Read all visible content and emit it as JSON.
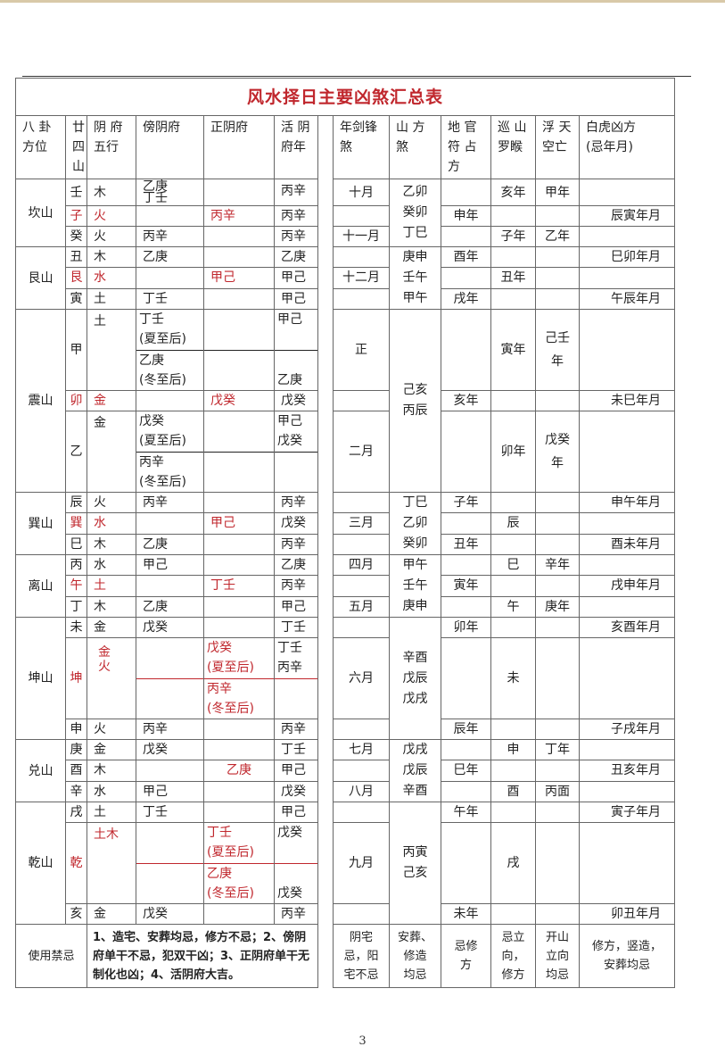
{
  "title": "风水择日主要凶煞汇总表",
  "colors": {
    "accent_red": "#c0272d",
    "border": "#666666"
  },
  "headers": [
    "八 卦\n方位",
    "廿\n四\n山",
    "阴 府\n五行",
    "傍阴府",
    "正阴府",
    "活 阴\n府年",
    "年剑锋\n煞",
    "山 方\n煞",
    "地 官\n符 占\n方",
    "巡 山\n罗睺",
    "浮 天\n空亡",
    "白虎凶方\n(忌年月)"
  ],
  "groups": [
    {
      "name": "坎山",
      "shanfang": "乙卯\n癸卯\n丁巳",
      "rows": [
        {
          "shan": "壬",
          "wx": "木",
          "bang": "乙庚\n丁壬",
          "zheng": "",
          "huo": "丙辛",
          "jian": "十月",
          "difu": "",
          "luohou": "亥年",
          "kongwang": "甲年",
          "baihu": "",
          "red": []
        },
        {
          "shan": "子",
          "wx": "火",
          "bang": "",
          "zheng": "丙辛",
          "huo": "丙辛",
          "jian": "",
          "difu": "申年",
          "luohou": "",
          "kongwang": "",
          "baihu": "辰寅年月",
          "red": [
            "shan",
            "wx",
            "zheng"
          ]
        },
        {
          "shan": "癸",
          "wx": "火",
          "bang": "丙辛",
          "zheng": "",
          "huo": "丙辛",
          "jian": "十一月",
          "difu": "",
          "luohou": "子年",
          "kongwang": "乙年",
          "baihu": "",
          "red": []
        }
      ]
    },
    {
      "name": "艮山",
      "shanfang": "庚申\n壬午\n甲午",
      "rows": [
        {
          "shan": "丑",
          "wx": "木",
          "bang": "乙庚",
          "zheng": "",
          "huo": "乙庚",
          "jian": "",
          "difu": "酉年",
          "luohou": "",
          "kongwang": "",
          "baihu": "巳卯年月",
          "red": []
        },
        {
          "shan": "艮",
          "wx": "水",
          "bang": "",
          "zheng": "甲己",
          "huo": "甲己",
          "jian": "十二月",
          "difu": "",
          "luohou": "丑年",
          "kongwang": "",
          "baihu": "",
          "red": [
            "shan",
            "wx",
            "zheng"
          ]
        },
        {
          "shan": "寅",
          "wx": "土",
          "bang": "丁壬",
          "zheng": "",
          "huo": "甲己",
          "jian": "",
          "difu": "戌年",
          "luohou": "",
          "kongwang": "",
          "baihu": "午辰年月",
          "red": []
        }
      ]
    },
    {
      "name": "震山",
      "shanfang": "己亥\n丙辰",
      "rows": [
        {
          "shan": "甲",
          "wx": "土",
          "bang": [
            "丁壬\n(夏至后)",
            "乙庚\n(冬至后)"
          ],
          "zheng": [
            "",
            ""
          ],
          "huo": [
            "甲己",
            "乙庚"
          ],
          "jian": "正",
          "difu": "",
          "luohou": "寅年",
          "kongwang": "己壬\n年",
          "baihu": "",
          "red": []
        },
        {
          "shan": "卯",
          "wx": "金",
          "bang": "",
          "zheng": "戊癸",
          "huo": "戊癸",
          "jian": "",
          "difu": "亥年",
          "luohou": "",
          "kongwang": "",
          "baihu": "未巳年月",
          "red": [
            "shan",
            "wx",
            "zheng"
          ]
        },
        {
          "shan": "乙",
          "wx": "金",
          "bang": [
            "戊癸\n(夏至后)",
            "丙辛\n(冬至后)"
          ],
          "zheng": [
            "",
            ""
          ],
          "huo": [
            "甲己\n戊癸",
            ""
          ],
          "jian": "二月",
          "difu": "",
          "luohou": "卯年",
          "kongwang": "戊癸\n年",
          "baihu": "",
          "red": []
        }
      ]
    },
    {
      "name": "巽山",
      "shanfang": "丁巳\n乙卯\n癸卯",
      "rows": [
        {
          "shan": "辰",
          "wx": "火",
          "bang": "丙辛",
          "zheng": "",
          "huo": "丙辛",
          "jian": "",
          "difu": "子年",
          "luohou": "",
          "kongwang": "",
          "baihu": "申午年月",
          "red": []
        },
        {
          "shan": "巽",
          "wx": "水",
          "bang": "",
          "zheng": "甲己",
          "huo": "戊癸",
          "jian": "三月",
          "difu": "",
          "luohou": "辰",
          "kongwang": "",
          "baihu": "",
          "red": [
            "shan",
            "wx",
            "zheng"
          ]
        },
        {
          "shan": "巳",
          "wx": "木",
          "bang": "乙庚",
          "zheng": "",
          "huo": "丙辛",
          "jian": "",
          "difu": "丑年",
          "luohou": "",
          "kongwang": "",
          "baihu": "酉未年月",
          "red": []
        }
      ]
    },
    {
      "name": "离山",
      "shanfang": "甲午\n壬午\n庚申",
      "rows": [
        {
          "shan": "丙",
          "wx": "水",
          "bang": "甲己",
          "zheng": "",
          "huo": "乙庚",
          "jian": "四月",
          "difu": "",
          "luohou": "巳",
          "kongwang": "辛年",
          "baihu": "",
          "red": []
        },
        {
          "shan": "午",
          "wx": "土",
          "bang": "",
          "zheng": "丁壬",
          "huo": "丙辛",
          "jian": "",
          "difu": "寅年",
          "luohou": "",
          "kongwang": "",
          "baihu": "戌申年月",
          "red": [
            "shan",
            "wx",
            "zheng"
          ]
        },
        {
          "shan": "丁",
          "wx": "木",
          "bang": "乙庚",
          "zheng": "",
          "huo": "甲己",
          "jian": "五月",
          "difu": "",
          "luohou": "午",
          "kongwang": "庚年",
          "baihu": "",
          "red": []
        }
      ]
    },
    {
      "name": "坤山",
      "shanfang": "辛酉\n戊辰\n戊戌",
      "rows": [
        {
          "shan": "未",
          "wx": "金",
          "bang": "戊癸",
          "zheng": "",
          "huo": "丁壬",
          "jian": "",
          "difu": "卯年",
          "luohou": "",
          "kongwang": "",
          "baihu": "亥酉年月",
          "red": []
        },
        {
          "shan": "坤",
          "wx": "金\n火",
          "bang": [
            "",
            ""
          ],
          "zheng": [
            "戊癸\n(夏至后)",
            "丙辛\n(冬至后)"
          ],
          "huo": [
            "丁壬\n丙辛",
            ""
          ],
          "jian": "六月",
          "difu": "",
          "luohou": "未",
          "kongwang": "",
          "baihu": "",
          "red": [
            "shan",
            "wx",
            "zheng",
            "line"
          ]
        },
        {
          "shan": "申",
          "wx": "火",
          "bang": "丙辛",
          "zheng": "",
          "huo": "丙辛",
          "jian": "",
          "difu": "辰年",
          "luohou": "",
          "kongwang": "",
          "baihu": "子戌年月",
          "red": []
        }
      ]
    },
    {
      "name": "兑山",
      "shanfang": "戊戌\n戊辰\n辛酉",
      "rows": [
        {
          "shan": "庚",
          "wx": "金",
          "bang": "戊癸",
          "zheng": "",
          "huo": "丁壬",
          "jian": "七月",
          "difu": "",
          "luohou": "申",
          "kongwang": "丁年",
          "baihu": "",
          "red": []
        },
        {
          "shan": "酉",
          "wx": "木",
          "bang": "",
          "zheng": "乙庚",
          "huo": "甲己",
          "jian": "",
          "difu": "巳年",
          "luohou": "",
          "kongwang": "",
          "baihu": "丑亥年月",
          "red": [
            "zheng"
          ]
        },
        {
          "shan": "辛",
          "wx": "水",
          "bang": "甲己",
          "zheng": "",
          "huo": "戊癸",
          "jian": "八月",
          "difu": "",
          "luohou": "酉",
          "kongwang": "丙面",
          "baihu": "",
          "red": []
        }
      ]
    },
    {
      "name": "乾山",
      "shanfang": "丙寅\n己亥",
      "rows": [
        {
          "shan": "戌",
          "wx": "土",
          "bang": "丁壬",
          "zheng": "",
          "huo": "甲己",
          "jian": "",
          "difu": "午年",
          "luohou": "",
          "kongwang": "",
          "baihu": "寅子年月",
          "red": []
        },
        {
          "shan": "乾",
          "wx": "土木",
          "bang": [
            "",
            ""
          ],
          "zheng": [
            "丁壬\n(夏至后)",
            "乙庚\n(冬至后)"
          ],
          "huo": [
            "戊癸",
            "戊癸"
          ],
          "jian": "九月",
          "difu": "",
          "luohou": "戌",
          "kongwang": "",
          "baihu": "",
          "red": [
            "shan",
            "wx",
            "zheng",
            "line"
          ]
        },
        {
          "shan": "亥",
          "wx": "金",
          "bang": "戊癸",
          "zheng": "",
          "huo": "丙辛",
          "jian": "",
          "difu": "未年",
          "luohou": "",
          "kongwang": "",
          "baihu": "卯丑年月",
          "red": []
        }
      ]
    }
  ],
  "usage": {
    "label": "使用禁忌",
    "text": "1、造宅、安葬均忌，修方不忌；2、傍阴府单干不忌，犯双干凶；3、正阴府单干无制化也凶；4、活阴府大吉。",
    "jian": "阴宅\n忌，阳\n宅不忌",
    "shanfang": "安葬、\n修造\n均忌",
    "difu": "忌修\n方",
    "luohou": "忌立\n向，\n修方",
    "kongwang": "开山\n立向\n均忌",
    "baihu": "修方，竖造，\n安葬均忌"
  },
  "page_number": "3"
}
